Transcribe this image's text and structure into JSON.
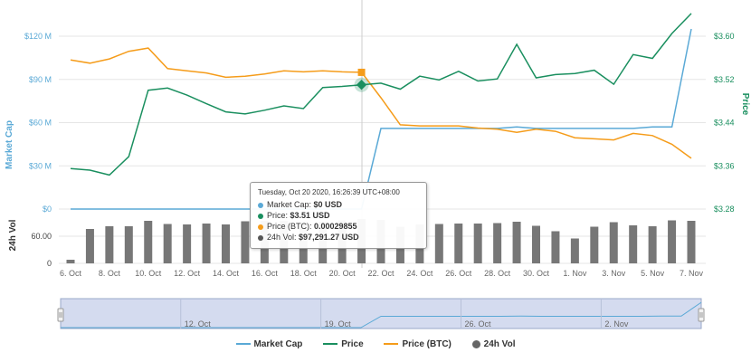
{
  "chart_data": {
    "type": "line",
    "x": [
      "6. Oct",
      "7. Oct",
      "8. Oct",
      "9. Oct",
      "10. Oct",
      "11. Oct",
      "12. Oct",
      "13. Oct",
      "14. Oct",
      "15. Oct",
      "16. Oct",
      "17. Oct",
      "18. Oct",
      "19. Oct",
      "20. Oct",
      "21. Oct",
      "22. Oct",
      "23. Oct",
      "24. Oct",
      "25. Oct",
      "26. Oct",
      "27. Oct",
      "28. Oct",
      "29. Oct",
      "30. Oct",
      "31. Oct",
      "1. Nov",
      "2. Nov",
      "3. Nov",
      "4. Nov",
      "5. Nov",
      "6. Nov",
      "7. Nov"
    ],
    "x_tick_labels": [
      "6. Oct",
      "8. Oct",
      "10. Oct",
      "12. Oct",
      "14. Oct",
      "16. Oct",
      "18. Oct",
      "20. Oct",
      "22. Oct",
      "24. Oct",
      "26. Oct",
      "28. Oct",
      "30. Oct",
      "1. Nov",
      "3. Nov",
      "5. Nov",
      "7. Nov"
    ],
    "series": [
      {
        "name": "Market Cap",
        "axis": "market_cap",
        "color": "#5aa9d6",
        "values": [
          0,
          0,
          0,
          0,
          0,
          0,
          0,
          0,
          0,
          0,
          0,
          0,
          0,
          0,
          0,
          0,
          56,
          56,
          56,
          56,
          56,
          56,
          56,
          57,
          56,
          56,
          56,
          56,
          56,
          56,
          57,
          57,
          125
        ]
      },
      {
        "name": "Price",
        "axis": "price",
        "color": "#1a8f5f",
        "values": [
          3.355,
          3.352,
          3.343,
          3.377,
          3.5,
          3.504,
          3.491,
          3.475,
          3.46,
          3.456,
          3.463,
          3.471,
          3.466,
          3.505,
          3.507,
          3.51,
          3.513,
          3.502,
          3.526,
          3.519,
          3.535,
          3.517,
          3.521,
          3.585,
          3.523,
          3.529,
          3.531,
          3.537,
          3.511,
          3.566,
          3.559,
          3.605,
          3.642
        ]
      },
      {
        "name": "Price (BTC)",
        "axis": "price_btc",
        "color": "#f59c1a",
        "values": [
          0.00031,
          0.000307,
          0.000311,
          0.000318,
          0.000321,
          0.000302,
          0.0003,
          0.000298,
          0.000294,
          0.000295,
          0.000297,
          0.0003,
          0.000299,
          0.0003,
          0.000299,
          0.00029855,
          0.000275,
          0.00025,
          0.000249,
          0.000249,
          0.000249,
          0.000247,
          0.000246,
          0.000243,
          0.000246,
          0.000244,
          0.000238,
          0.000237,
          0.000236,
          0.000242,
          0.00024,
          0.000232,
          0.000219
        ]
      },
      {
        "name": "24h Vol",
        "axis": "volume",
        "color": "#777777",
        "values": [
          8,
          76,
          82,
          82,
          94,
          87,
          86,
          88,
          86,
          93,
          94,
          94,
          91,
          92,
          95,
          98,
          96,
          81,
          86,
          87,
          88,
          88,
          89,
          92,
          83,
          71,
          55,
          81,
          91,
          84,
          82,
          95,
          94
        ]
      }
    ],
    "axes": {
      "market_cap": {
        "ylim": [
          0,
          120
        ],
        "ticks": [
          "$0",
          "$30 M",
          "$60 M",
          "$90 M",
          "$120 M"
        ],
        "label": "Market Cap",
        "position": "left"
      },
      "price": {
        "ylim": [
          3.28,
          3.6
        ],
        "ticks": [
          "$3.28",
          "$3.36",
          "$3.44",
          "$3.52",
          "$3.60"
        ],
        "label": "Price",
        "position": "right"
      },
      "volume": {
        "ylim": [
          0,
          120
        ],
        "ticks": [
          "0",
          "60.00"
        ],
        "label": "24h Vol",
        "position": "left"
      }
    },
    "navigator_labels": [
      "12. Oct",
      "19. Oct",
      "26. Oct",
      "2. Nov"
    ],
    "legend_position": "bottom",
    "grid": true
  },
  "tooltip": {
    "timestamp": "Tuesday, Oct 20 2020, 16:26:39 UTC+08:00",
    "rows": [
      {
        "label": "Market Cap:",
        "value": "$0 USD",
        "color": "#5aa9d6"
      },
      {
        "label": "Price:",
        "value": "$3.51 USD",
        "color": "#1a8f5f"
      },
      {
        "label": "Price (BTC):",
        "value": "0.00029855",
        "color": "#f59c1a"
      },
      {
        "label": "24h Vol:",
        "value": "$97,291.27 USD",
        "color": "#555555"
      }
    ]
  },
  "legend": [
    {
      "label": "Market Cap",
      "color": "#5aa9d6",
      "kind": "line"
    },
    {
      "label": "Price",
      "color": "#1a8f5f",
      "kind": "line"
    },
    {
      "label": "Price (BTC)",
      "color": "#f59c1a",
      "kind": "line"
    },
    {
      "label": "24h Vol",
      "color": "#666666",
      "kind": "dot"
    }
  ]
}
